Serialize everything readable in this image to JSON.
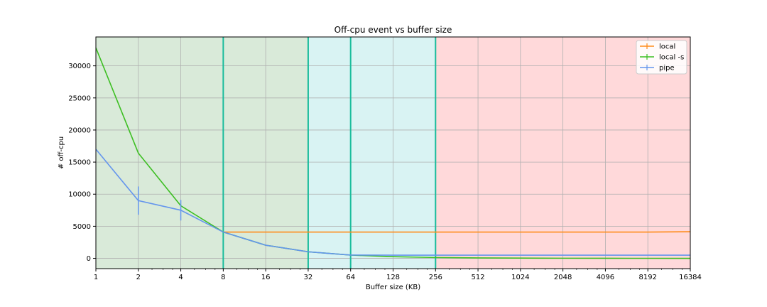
{
  "chart_data": {
    "type": "line",
    "title": "Off-cpu event vs buffer size",
    "xlabel": "Buffer size (KB)",
    "ylabel": "# off-cpu",
    "xscale": "log2",
    "xlim": [
      1,
      16384
    ],
    "ylim": [
      -1600,
      34500
    ],
    "x_ticks": [
      1,
      2,
      4,
      8,
      16,
      32,
      64,
      128,
      256,
      512,
      1024,
      2048,
      4096,
      8192,
      16384
    ],
    "x_tick_labels": [
      "1",
      "2",
      "4",
      "8",
      "16",
      "32",
      "64",
      "128",
      "256",
      "512",
      "1024",
      "2048",
      "4096",
      "8192",
      "16384"
    ],
    "y_ticks": [
      0,
      5000,
      10000,
      15000,
      20000,
      25000,
      30000
    ],
    "y_tick_labels": [
      "0",
      "5000",
      "10000",
      "15000",
      "20000",
      "25000",
      "30000"
    ],
    "grid": true,
    "legend_position": "top-right",
    "regions": [
      {
        "from": 1,
        "to": 32,
        "color": "#d9ead9"
      },
      {
        "from": 32,
        "to": 256,
        "color": "#d9f3f3"
      },
      {
        "from": 256,
        "to": 16384,
        "color": "#ffd9da"
      }
    ],
    "vlines": {
      "at": [
        8,
        32,
        64,
        256
      ],
      "color": "#1abc9c"
    },
    "x": [
      1,
      2,
      4,
      8,
      16,
      32,
      64,
      128,
      256,
      512,
      1024,
      2048,
      4096,
      8192,
      16384
    ],
    "series": [
      {
        "name": "local",
        "color": "#ff8c1a",
        "x": [
          8,
          16,
          32,
          64,
          128,
          256,
          512,
          1024,
          2048,
          4096,
          8192,
          16384
        ],
        "values": [
          4100,
          4100,
          4100,
          4100,
          4100,
          4100,
          4100,
          4100,
          4100,
          4100,
          4100,
          4150
        ],
        "errors": [
          0,
          0,
          0,
          0,
          0,
          0,
          0,
          0,
          0,
          0,
          0,
          0
        ]
      },
      {
        "name": "local -s",
        "color": "#3dbf23",
        "x": [
          1,
          2,
          4,
          8,
          16,
          32,
          64,
          128,
          256,
          512,
          1024,
          2048,
          4096,
          8192,
          16384
        ],
        "values": [
          32800,
          16400,
          8200,
          4100,
          2050,
          1020,
          510,
          260,
          130,
          70,
          40,
          20,
          10,
          5,
          3
        ],
        "errors": [
          0,
          0,
          0,
          0,
          0,
          0,
          0,
          0,
          0,
          0,
          0,
          0,
          0,
          0,
          0
        ]
      },
      {
        "name": "pipe",
        "color": "#6495ed",
        "x": [
          1,
          2,
          4,
          8,
          16,
          32,
          64,
          128,
          256,
          512,
          1024,
          2048,
          4096,
          8192,
          16384
        ],
        "values": [
          17000,
          9000,
          7500,
          4100,
          2050,
          1020,
          510,
          500,
          500,
          500,
          500,
          500,
          500,
          500,
          500
        ],
        "errors": [
          0,
          2200,
          1600,
          0,
          0,
          0,
          0,
          0,
          0,
          0,
          0,
          0,
          0,
          0,
          0
        ]
      }
    ]
  }
}
